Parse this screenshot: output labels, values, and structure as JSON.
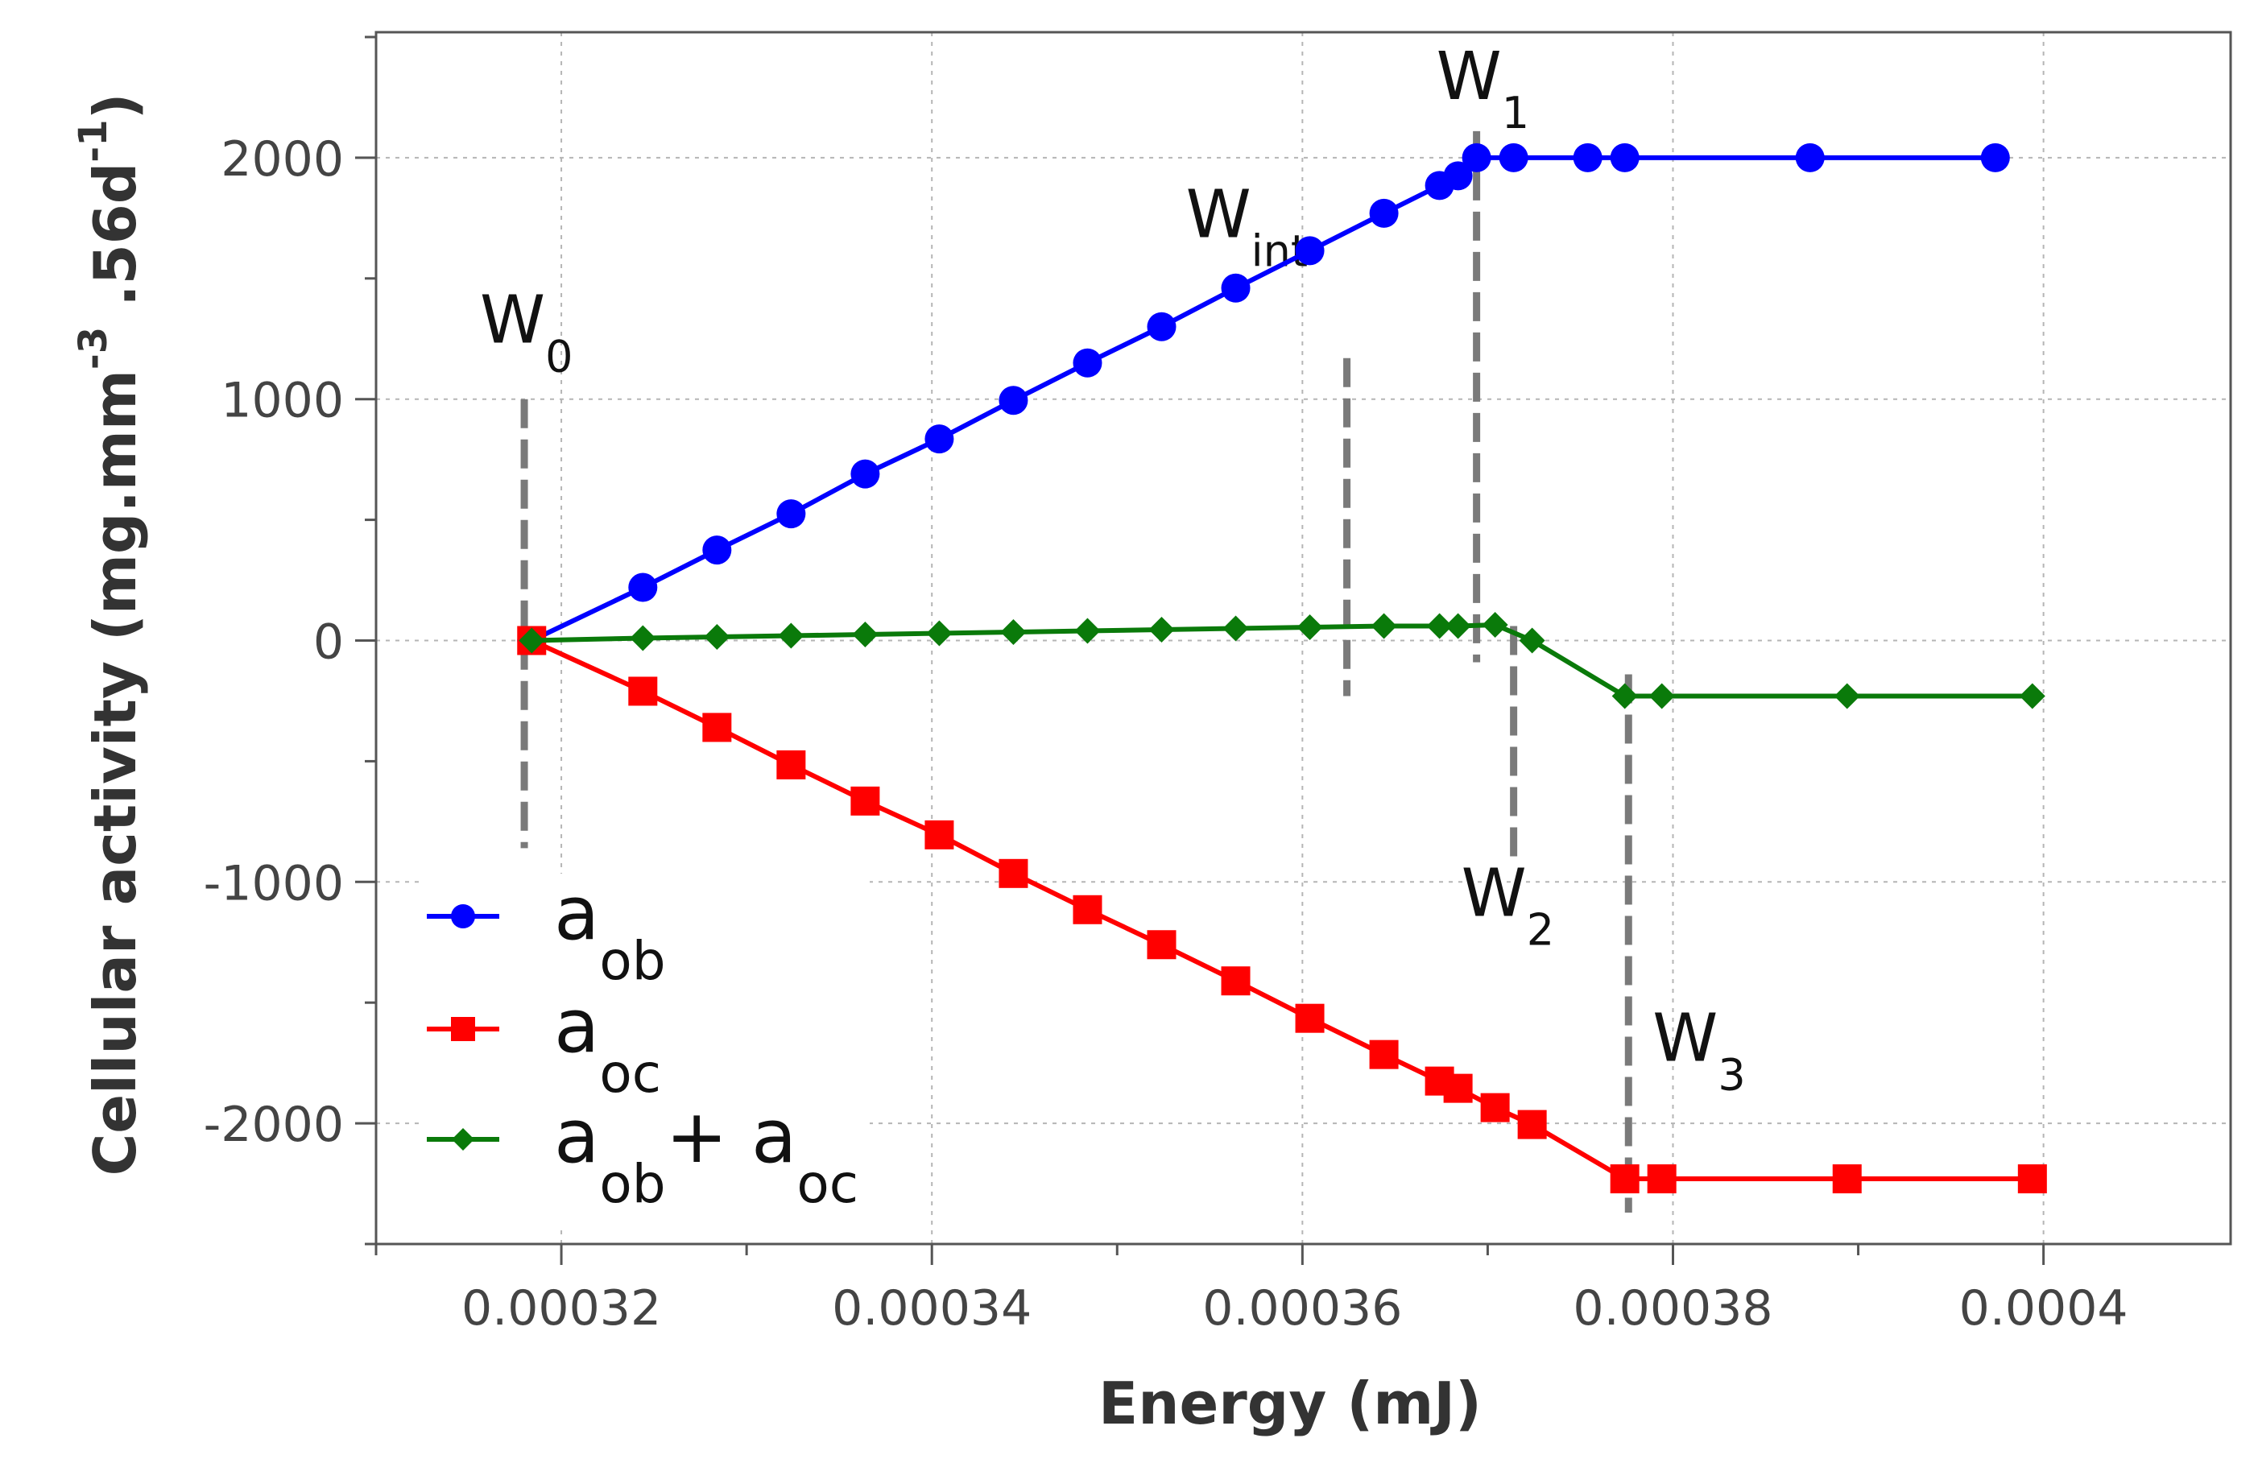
{
  "chart_data": {
    "type": "line",
    "xlabel": "Energy (mJ)",
    "ylabel_main": "Cellular activity (mg.mm",
    "ylabel_sup1": "-3",
    "ylabel_mid": " .56d",
    "ylabel_sup2": "-1",
    "ylabel_end": ")",
    "xlim": [
      0.00031,
      0.0004101
    ],
    "ylim": [
      -2500,
      2520
    ],
    "x_ticks": [
      {
        "value": 0.00032,
        "label": "0.00032"
      },
      {
        "value": 0.00034,
        "label": "0.00034"
      },
      {
        "value": 0.00036,
        "label": "0.00036"
      },
      {
        "value": 0.00038,
        "label": "0.00038"
      },
      {
        "value": 0.0004,
        "label": "0.0004"
      }
    ],
    "x_minor_ticks": [
      0.00031,
      0.00033,
      0.00035,
      0.00037,
      0.00039
    ],
    "y_ticks": [
      {
        "value": -2000,
        "label": "-2000"
      },
      {
        "value": -1000,
        "label": "-1000"
      },
      {
        "value": 0,
        "label": "0"
      },
      {
        "value": 1000,
        "label": "1000"
      },
      {
        "value": 2000,
        "label": "2000"
      }
    ],
    "y_minor_ticks": [
      -2500,
      -1500,
      -500,
      500,
      1500,
      2500
    ],
    "grid": true,
    "legend_position": "bottom-left",
    "series": [
      {
        "name": "a_ob",
        "legend_main": "a",
        "legend_sub": "ob",
        "color": "#0000ff",
        "marker": "circle",
        "x": [
          0.0003184,
          0.0003244,
          0.0003284,
          0.0003324,
          0.0003364,
          0.0003404,
          0.0003444,
          0.0003484,
          0.0003524,
          0.0003564,
          0.0003604,
          0.0003644,
          0.0003674,
          0.0003684,
          0.0003694,
          0.0003714,
          0.0003754,
          0.0003774,
          0.0003874,
          0.0003974
        ],
        "y": [
          0,
          220,
          375,
          525,
          690,
          835,
          995,
          1150,
          1300,
          1460,
          1615,
          1770,
          1885,
          1925,
          2000,
          2000,
          2000,
          2000,
          2000,
          2000
        ]
      },
      {
        "name": "a_oc",
        "legend_main": "a",
        "legend_sub": "oc",
        "color": "#ff0000",
        "marker": "square",
        "x": [
          0.0003184,
          0.0003244,
          0.0003284,
          0.0003324,
          0.0003364,
          0.0003404,
          0.0003444,
          0.0003484,
          0.0003524,
          0.0003564,
          0.0003604,
          0.0003644,
          0.0003674,
          0.0003684,
          0.0003704,
          0.0003724,
          0.0003774,
          0.0003794,
          0.0003894,
          0.0003994
        ],
        "y": [
          0,
          -210,
          -360,
          -515,
          -665,
          -805,
          -965,
          -1115,
          -1260,
          -1410,
          -1565,
          -1715,
          -1825,
          -1855,
          -1935,
          -2005,
          -2230,
          -2230,
          -2230,
          -2230
        ]
      },
      {
        "name": "a_ob + a_oc",
        "legend_main": "a",
        "legend_sub": "ob",
        "legend_plus": "+ a",
        "legend_sub2": "oc",
        "color": "#0a7a0a",
        "marker": "diamond",
        "x": [
          0.0003184,
          0.0003244,
          0.0003284,
          0.0003324,
          0.0003364,
          0.0003404,
          0.0003444,
          0.0003484,
          0.0003524,
          0.0003564,
          0.0003604,
          0.0003644,
          0.0003674,
          0.0003684,
          0.0003704,
          0.0003724,
          0.0003774,
          0.0003794,
          0.0003894,
          0.0003994
        ],
        "y": [
          0,
          10,
          15,
          20,
          25,
          30,
          35,
          40,
          45,
          50,
          55,
          60,
          60,
          60,
          65,
          0,
          -230,
          -230,
          -230,
          -230
        ]
      }
    ],
    "annotations": [
      {
        "main": "W",
        "sub": "0",
        "x": 0.000318,
        "y_top": 1000,
        "y_bottom": -860
      },
      {
        "main": "W",
        "sub": "int",
        "x": 0.0003624,
        "y_top": 1170,
        "y_bottom": -230
      },
      {
        "main": "W",
        "sub": "1",
        "x": 0.0003694,
        "y_top": 2110,
        "y_bottom": -90
      },
      {
        "main": "W",
        "sub": "2",
        "x": 0.0003714,
        "y_top": 60,
        "y_bottom": -940
      },
      {
        "main": "W",
        "sub": "3",
        "x": 0.0003776,
        "y_top": -140,
        "y_bottom": -2370
      }
    ]
  }
}
